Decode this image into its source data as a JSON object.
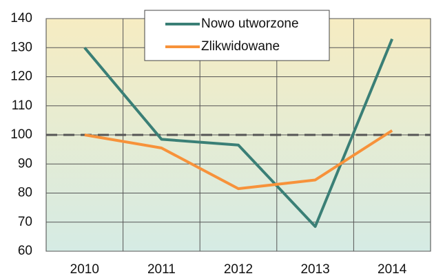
{
  "chart_data": {
    "type": "line",
    "categories": [
      "2010",
      "2011",
      "2012",
      "2013",
      "2014"
    ],
    "series": [
      {
        "name": "Nowo utworzone",
        "color": "#3a7f76",
        "values": [
          130,
          98.5,
          96.5,
          68.5,
          133
        ]
      },
      {
        "name": "Zlikwidowane",
        "color": "#f7923a",
        "values": [
          100,
          95.5,
          81.5,
          84.5,
          101.5
        ]
      }
    ],
    "ylim": [
      60,
      140
    ],
    "yticks": [
      60,
      70,
      80,
      90,
      100,
      110,
      120,
      130,
      140
    ],
    "reference_line": 100,
    "grid": true,
    "legend": "top"
  }
}
